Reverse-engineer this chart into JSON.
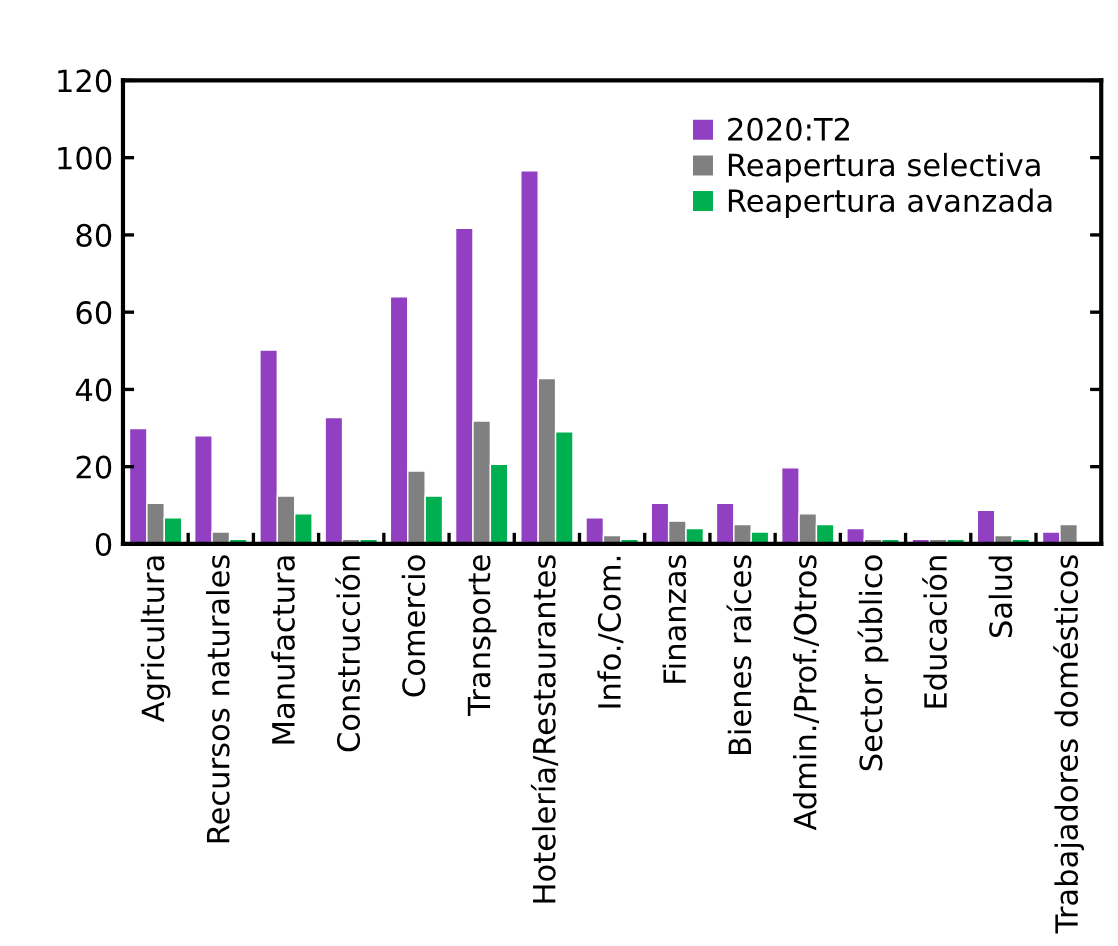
{
  "chart_data": {
    "type": "bar",
    "categories": [
      "Agricultura",
      "Recursos naturales",
      "Manufactura",
      "Construcción",
      "Comercio",
      "Transporte",
      "Hotelería/Restaurantes",
      "Info./Com.",
      "Finanzas",
      "Bienes raíces",
      "Admin./Prof./Otros",
      "Sector público",
      "Educación",
      "Salud",
      "Trabajadores domésticos"
    ],
    "series": [
      {
        "name": "2020:T2",
        "color": "#9040c0",
        "values": [
          29.9,
          28,
          50.2,
          32.7,
          64,
          81.7,
          96.6,
          6.8,
          10.5,
          10.5,
          19.7,
          4,
          1.2,
          8.7,
          3.1
        ]
      },
      {
        "name": "Reapertura selectiva",
        "color": "#808080",
        "values": [
          10.5,
          3.1,
          12.4,
          1.2,
          18.9,
          31.8,
          42.8,
          2.2,
          5.9,
          5,
          7.8,
          1.2,
          1.2,
          2.2,
          5
        ]
      },
      {
        "name": "Reapertura avanzada",
        "color": "#00b050",
        "values": [
          6.8,
          1.2,
          7.8,
          1.2,
          12.4,
          20.6,
          29,
          1.2,
          4,
          3.1,
          5,
          1.2,
          1.2,
          1.2,
          null
        ]
      }
    ],
    "ylim": [
      0,
      120
    ],
    "yticks": [
      0,
      20,
      40,
      60,
      80,
      100,
      120
    ],
    "grid": false,
    "legend": "top right"
  }
}
